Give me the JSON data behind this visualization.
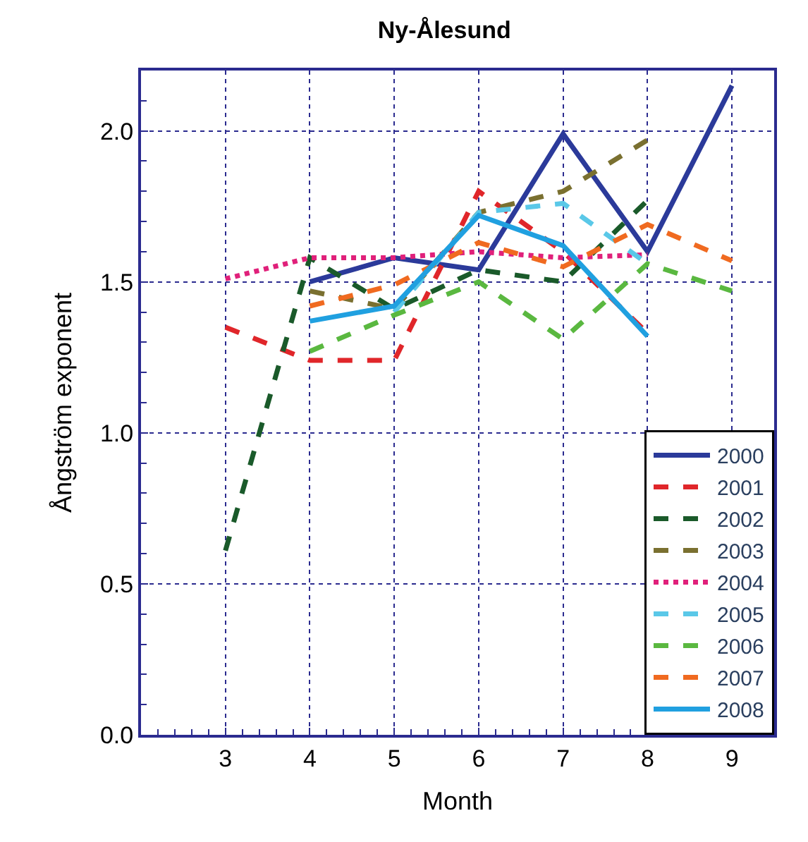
{
  "chart_data": {
    "type": "line",
    "title": "Ny-Ålesund",
    "xlabel": "Month",
    "ylabel": "Ångström exponent",
    "xlim": [
      2,
      9.5
    ],
    "xticks": [
      3,
      4,
      5,
      6,
      7,
      8,
      9
    ],
    "ylim": [
      0,
      2.2
    ],
    "yticks": [
      {
        "value": 0,
        "label": "0.0"
      },
      0.5,
      {
        "value": 1,
        "label": "1.0"
      },
      1.5,
      {
        "value": 2,
        "label": "2.0"
      }
    ],
    "grid": true,
    "legend": "bottom right",
    "marker": "none",
    "series": [
      {
        "name": "2000",
        "color": "#2b3a9a",
        "line_style": "solid",
        "x": [
          4,
          5,
          6,
          7,
          8,
          9
        ],
        "values": [
          1.5,
          1.58,
          1.54,
          1.99,
          1.6,
          2.15
        ]
      },
      {
        "name": "2001",
        "color": "#e0262a",
        "line_style": "dashed",
        "x": [
          3,
          4,
          5,
          6,
          7,
          8
        ],
        "values": [
          1.35,
          1.24,
          1.24,
          1.8,
          1.6,
          1.33
        ]
      },
      {
        "name": "2002",
        "color": "#1a5a2a",
        "line_style": "dashed",
        "x": [
          3,
          4,
          5,
          6,
          7,
          8
        ],
        "values": [
          0.61,
          1.58,
          1.41,
          1.54,
          1.5,
          1.77
        ]
      },
      {
        "name": "2003",
        "color": "#7a7030",
        "line_style": "dashed",
        "x": [
          4,
          5,
          6,
          7,
          8
        ],
        "values": [
          1.47,
          1.41,
          1.73,
          1.8,
          1.97
        ]
      },
      {
        "name": "2004",
        "color": "#e0207a",
        "line_style": "dotted",
        "x": [
          3,
          4,
          5,
          6,
          7,
          8
        ],
        "values": [
          1.51,
          1.58,
          1.58,
          1.6,
          1.58,
          1.59
        ]
      },
      {
        "name": "2005",
        "color": "#5ac8e8",
        "line_style": "dashed",
        "x": [
          5,
          6,
          7,
          8
        ],
        "values": [
          1.4,
          1.73,
          1.76,
          1.56
        ]
      },
      {
        "name": "2006",
        "color": "#5ab840",
        "line_style": "dashed",
        "x": [
          4,
          5,
          6,
          7,
          8,
          9
        ],
        "values": [
          1.27,
          1.39,
          1.5,
          1.31,
          1.56,
          1.47
        ]
      },
      {
        "name": "2007",
        "color": "#f06a20",
        "line_style": "dashed",
        "x": [
          4,
          5,
          6,
          7,
          8,
          9
        ],
        "values": [
          1.42,
          1.49,
          1.63,
          1.55,
          1.69,
          1.57
        ]
      },
      {
        "name": "2008",
        "color": "#20a0e0",
        "line_style": "solid",
        "x": [
          4,
          5,
          6,
          7,
          8
        ],
        "values": [
          1.37,
          1.42,
          1.72,
          1.62,
          1.32
        ]
      }
    ]
  }
}
